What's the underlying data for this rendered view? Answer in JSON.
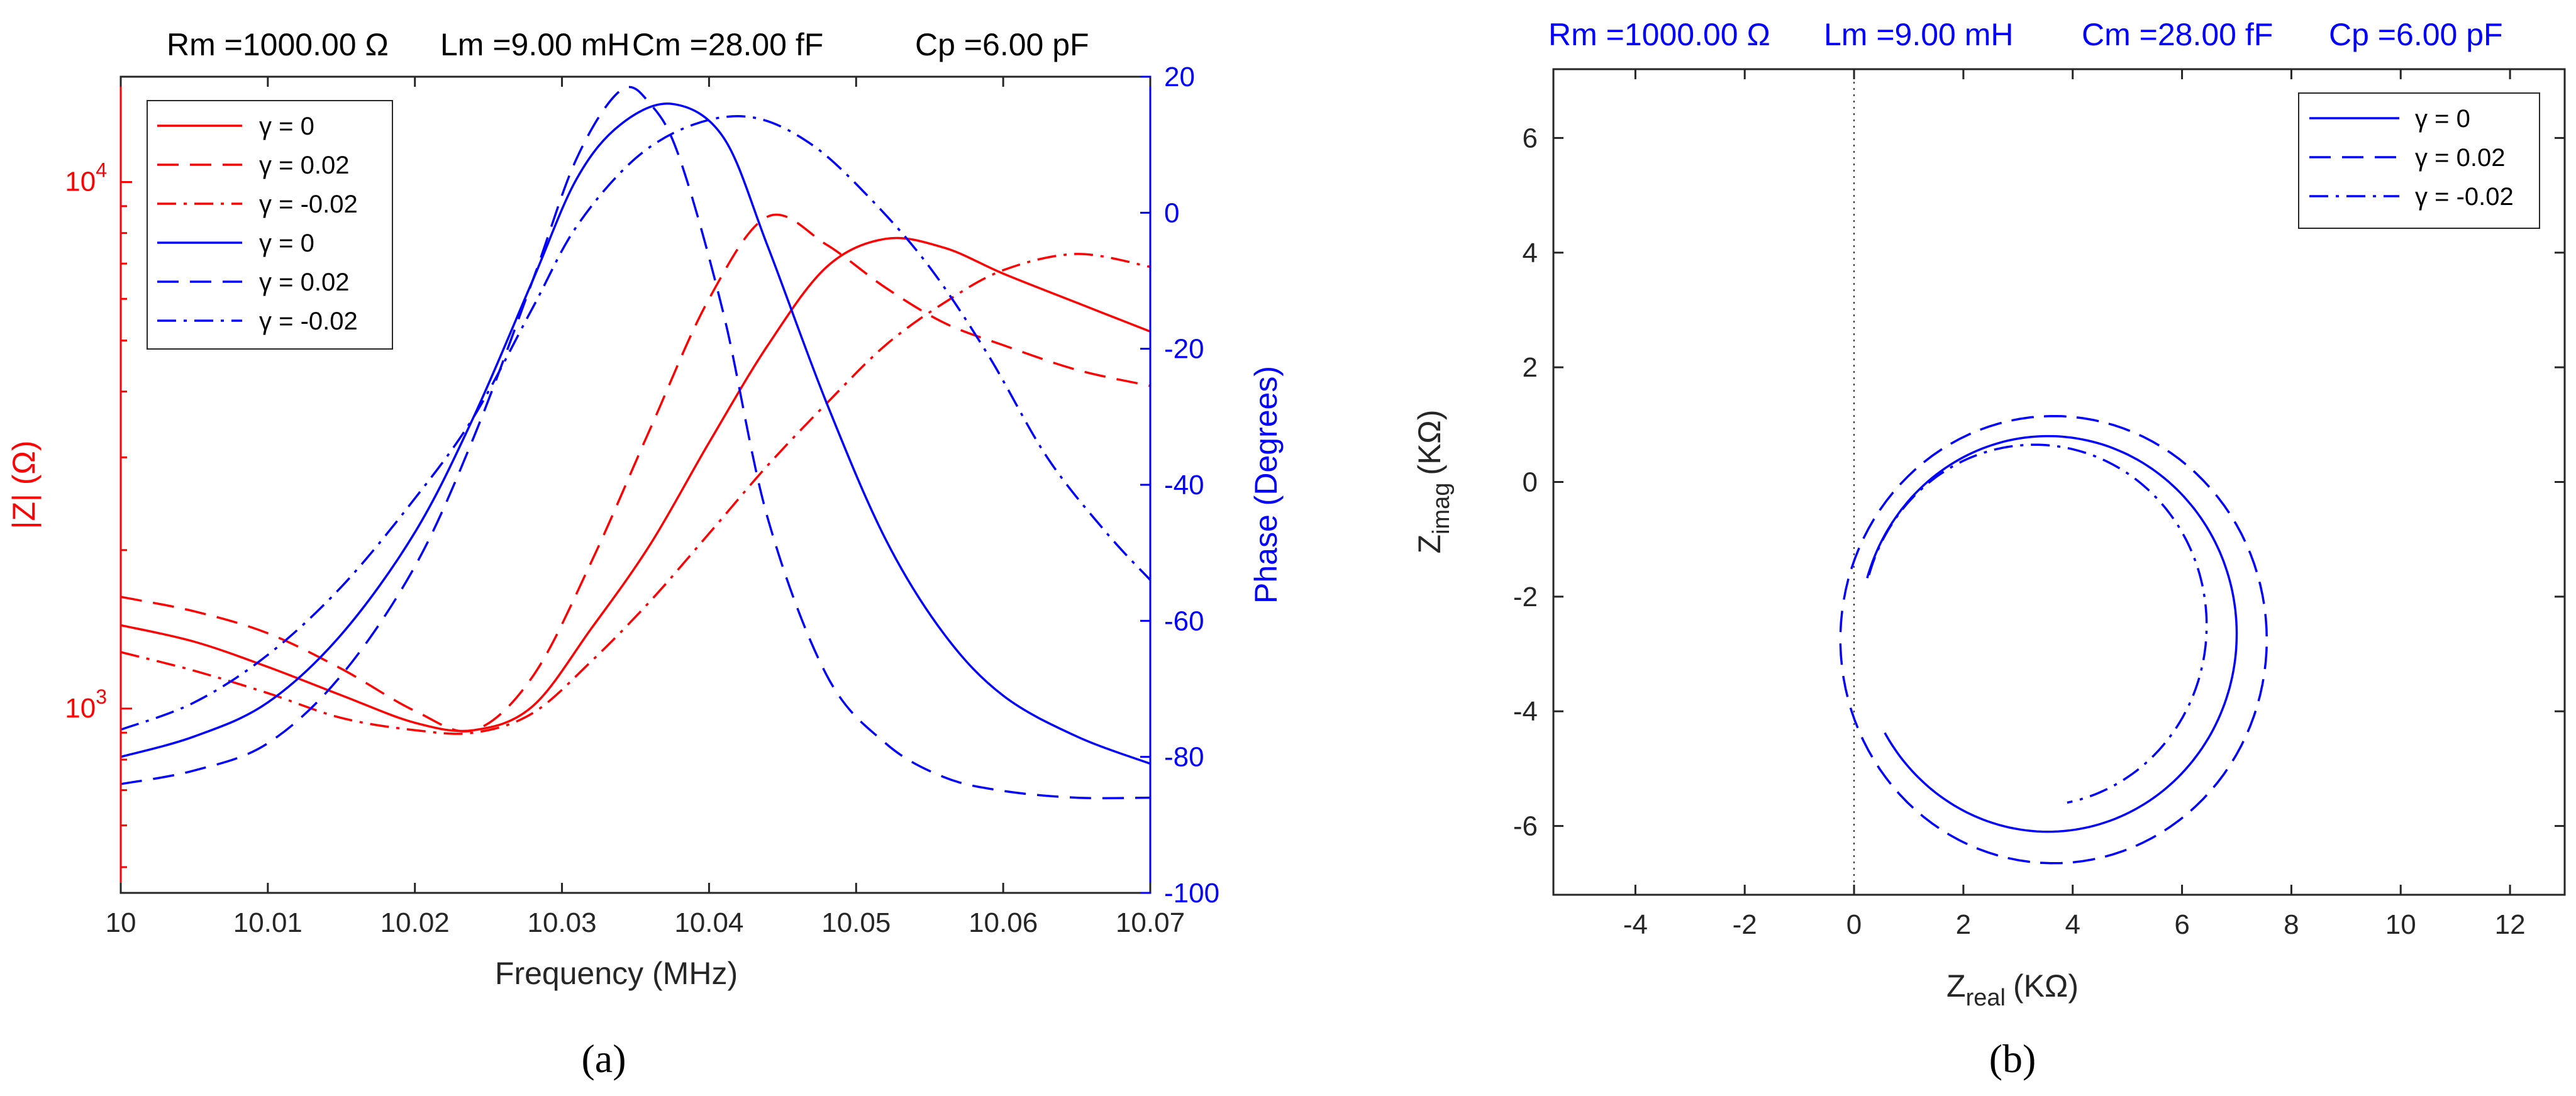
{
  "chart_data": [
    {
      "id": "a",
      "type": "line",
      "panel_label": "(a)",
      "title_parts": [
        "Rm =1000.00 Ω",
        "Lm =9.00 mH",
        "Cm =28.00 fF",
        "Cp =6.00 pF"
      ],
      "xlabel": "Frequency (MHz)",
      "ylabel_left": "|Z| (Ω)",
      "ylabel_right": "Phase (Degrees)",
      "x_ticks": [
        "10",
        "10.01",
        "10.02",
        "10.03",
        "10.04",
        "10.05",
        "10.06",
        "10.07"
      ],
      "xlim": [
        10,
        10.07
      ],
      "ylim_left_log10": [
        2.65,
        4.2
      ],
      "y_left_ticks": [
        {
          "exp": "3",
          "val": 3
        },
        {
          "exp": "4",
          "val": 4
        }
      ],
      "ylim_right": [
        -100,
        20
      ],
      "y_right_ticks": [
        "20",
        "0",
        "-20",
        "-40",
        "-60",
        "-80",
        "-100"
      ],
      "colors": {
        "magnitude": "#ff0000",
        "phase": "#0000ff"
      },
      "legend": [
        {
          "label": "γ = 0",
          "color": "#ff0000",
          "style": "solid"
        },
        {
          "label": "γ = 0.02",
          "color": "#ff0000",
          "style": "dashed"
        },
        {
          "label": "γ = -0.02",
          "color": "#ff0000",
          "style": "dashdot"
        },
        {
          "label": "γ = 0",
          "color": "#0000ff",
          "style": "solid"
        },
        {
          "label": "γ = 0.02",
          "color": "#0000ff",
          "style": "dashed"
        },
        {
          "label": "γ = -0.02",
          "color": "#0000ff",
          "style": "dashdot"
        }
      ],
      "series": [
        {
          "name": "|Z| γ = 0",
          "axis": "left",
          "color": "#ff0000",
          "style": "solid",
          "x": [
            10,
            10.005,
            10.01,
            10.015,
            10.02,
            10.024,
            10.028,
            10.032,
            10.036,
            10.04,
            10.044,
            10.048,
            10.052,
            10.056,
            10.06,
            10.065,
            10.07
          ],
          "y": [
            1440,
            1340,
            1200,
            1060,
            940,
            910,
            1010,
            1420,
            2050,
            3200,
            4900,
            6900,
            7800,
            7500,
            6700,
            5900,
            5200
          ]
        },
        {
          "name": "|Z| γ = 0.02",
          "axis": "left",
          "color": "#ff0000",
          "style": "dashed",
          "x": [
            10,
            10.005,
            10.01,
            10.015,
            10.02,
            10.024,
            10.028,
            10.032,
            10.036,
            10.04,
            10.044,
            10.048,
            10.052,
            10.056,
            10.06,
            10.065,
            10.07
          ],
          "y": [
            1630,
            1530,
            1390,
            1190,
            990,
            910,
            1150,
            1900,
            3400,
            6000,
            8600,
            7600,
            6300,
            5400,
            4900,
            4400,
            4100
          ]
        },
        {
          "name": "|Z| γ = -0.02",
          "axis": "left",
          "color": "#ff0000",
          "style": "dashdot",
          "x": [
            10,
            10.005,
            10.01,
            10.015,
            10.02,
            10.024,
            10.028,
            10.032,
            10.036,
            10.04,
            10.044,
            10.048,
            10.052,
            10.056,
            10.06,
            10.065,
            10.07
          ],
          "y": [
            1280,
            1180,
            1070,
            960,
            910,
            900,
            980,
            1230,
            1600,
            2150,
            2900,
            3800,
            4900,
            5900,
            6800,
            7300,
            6900
          ]
        },
        {
          "name": "Phase γ = 0",
          "axis": "right",
          "color": "#0000ff",
          "style": "solid",
          "x": [
            10,
            10.005,
            10.01,
            10.015,
            10.02,
            10.024,
            10.028,
            10.031,
            10.034,
            10.0375,
            10.041,
            10.044,
            10.048,
            10.052,
            10.056,
            10.06,
            10.065,
            10.07
          ],
          "y": [
            -80,
            -77,
            -72,
            -62,
            -47,
            -30,
            -10,
            5,
            13,
            16,
            11,
            -5,
            -28,
            -48,
            -62,
            -71,
            -77,
            -81
          ]
        },
        {
          "name": "Phase γ = 0.02",
          "axis": "right",
          "color": "#0000ff",
          "style": "dashed",
          "x": [
            10,
            10.005,
            10.01,
            10.015,
            10.02,
            10.024,
            10.028,
            10.031,
            10.034,
            10.036,
            10.038,
            10.041,
            10.044,
            10.048,
            10.052,
            10.056,
            10.06,
            10.065,
            10.07
          ],
          "y": [
            -84,
            -82,
            -78,
            -68,
            -52,
            -33,
            -10,
            8,
            18,
            16,
            8,
            -15,
            -45,
            -68,
            -78,
            -83,
            -85,
            -86,
            -86
          ]
        },
        {
          "name": "Phase γ = -0.02",
          "axis": "right",
          "color": "#0000ff",
          "style": "dashdot",
          "x": [
            10,
            10.005,
            10.01,
            10.015,
            10.02,
            10.024,
            10.028,
            10.031,
            10.035,
            10.039,
            10.043,
            10.047,
            10.051,
            10.055,
            10.059,
            10.063,
            10.067,
            10.07
          ],
          "y": [
            -76,
            -72,
            -65,
            -55,
            -42,
            -30,
            -14,
            -2,
            8,
            13,
            14,
            10,
            2,
            -8,
            -21,
            -36,
            -47,
            -54
          ]
        }
      ]
    },
    {
      "id": "b",
      "type": "line",
      "panel_label": "(b)",
      "title_parts": [
        "Rm =1000.00 Ω",
        "Lm =9.00 mH",
        "Cm =28.00 fF",
        "Cp =6.00 pF"
      ],
      "xlabel_main": "Z",
      "xlabel_sub": "real",
      "xlabel_unit": "(KΩ)",
      "ylabel_main": "Z",
      "ylabel_sub": "imag",
      "ylabel_unit": "(KΩ)",
      "xlim": [
        -5.5,
        13
      ],
      "ylim": [
        -7.2,
        7.2
      ],
      "x_ticks": [
        "-4",
        "-2",
        "0",
        "2",
        "4",
        "6",
        "8",
        "10",
        "12"
      ],
      "y_ticks": [
        "6",
        "4",
        "2",
        "0",
        "-2",
        "-4",
        "-6"
      ],
      "color": "#0000ff",
      "legend": [
        {
          "label": "γ = 0",
          "style": "solid"
        },
        {
          "label": "γ = 0.02",
          "style": "dashed"
        },
        {
          "label": "γ = -0.02",
          "style": "dashdot"
        }
      ],
      "series": [
        {
          "name": "γ = 0",
          "style": "solid",
          "center": [
            3.55,
            -2.65
          ],
          "radius": 3.45,
          "arc_from_deg": 90,
          "arc_to_deg": 270,
          "x_start": 0.15,
          "y_start": -1.65
        },
        {
          "name": "γ = 0.02",
          "style": "dashed",
          "center": [
            3.65,
            -2.75
          ],
          "radius": 3.9,
          "arc_start": [
            0.15,
            -4.1
          ],
          "arc_end": [
            0.2,
            -1.6
          ]
        },
        {
          "name": "γ = -0.02",
          "style": "dashdot",
          "center": [
            3.3,
            -2.5
          ],
          "radius": 3.15,
          "arc_start": [
            3.9,
            -5.6
          ],
          "arc_end": [
            0.2,
            -1.6
          ]
        }
      ]
    }
  ]
}
